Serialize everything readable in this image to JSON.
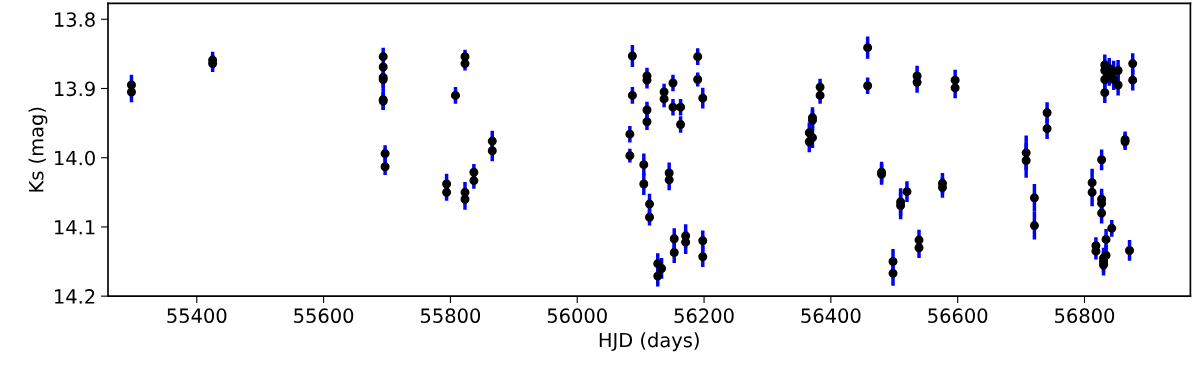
{
  "chart_data": {
    "type": "scatter",
    "xlabel": "HJD (days)",
    "ylabel": "Ks (mag)",
    "xlim": [
      55260,
      56967
    ],
    "xticks": [
      55400,
      55600,
      55800,
      56000,
      56200,
      56400,
      56600,
      56800
    ],
    "ylim": [
      14.2,
      13.777
    ],
    "yticks": [
      13.8,
      13.9,
      {
        "value": 14.0,
        "label": "14.0"
      },
      14.1,
      14.2
    ],
    "marker": "circle",
    "grid": false,
    "series": [
      {
        "color": "#0000ff",
        "colors": [
          "#000000",
          "#000000",
          "#000000",
          "#000000",
          "#000000",
          "#000000",
          "#000000",
          "#000000",
          "#000000",
          "#000000",
          "#000000",
          "#000000",
          "#000000",
          "#000000",
          "#000000",
          "#000000",
          "#000000",
          "#000000",
          "#000000",
          "#000000",
          "#000000",
          "#000000",
          "#000000",
          "#000000",
          "#000000",
          "#000000",
          "#000000",
          "#000000",
          "#000000",
          "#000000",
          "#000000",
          "#000000",
          "#000000",
          "#000000",
          "#000000",
          "#000000",
          "#000000",
          "#000000",
          "#000000",
          "#000000",
          "#000000",
          "#000000",
          "#000000",
          "#000000",
          "#000000",
          "#000000",
          "#000000",
          "#000000",
          "#000000",
          "#000000",
          "#000000",
          "#000000",
          "#000000",
          "#000000",
          "#000000",
          "#000000",
          "#000000",
          "#000000",
          "#000000",
          "#000000",
          "#000000",
          "#000000",
          "#000000",
          "#000000",
          "#000000",
          "#000000",
          "#000000",
          "#000000",
          "#000000",
          "#000000",
          "#000000",
          "#000000",
          "#000000",
          "#000000",
          "#000000",
          "#000000",
          "#000000",
          "#000000",
          "#000000",
          "#000000",
          "#000000",
          "#000000",
          "#000000",
          "#000000",
          "#000000",
          "#000000",
          "#000000",
          "#000000",
          "#000000",
          "#000000",
          "#000000",
          "#000000",
          "#000000",
          "#000000",
          "#000000",
          "#000000",
          "#000000",
          "#000000",
          "#000000",
          "#000000",
          "#000000",
          "#000000",
          "#000000",
          "#000000",
          "#000000",
          "#000000",
          "#000000",
          "#000000",
          "#000000",
          "#000000",
          "#000000",
          "#000000",
          "#000000",
          "#000000"
        ],
        "x": [
          55297,
          55297,
          55425,
          55425,
          55694,
          55694,
          55694,
          55694,
          55694,
          55694,
          55697,
          55697,
          55794,
          55794,
          55808,
          55823,
          55823,
          55823,
          55823,
          55837,
          55837,
          55866,
          55866,
          56083,
          56083,
          56087,
          56087,
          56105,
          56105,
          56110,
          56110,
          56110,
          56110,
          56114,
          56114,
          56127,
          56127,
          56133,
          56137,
          56137,
          56145,
          56145,
          56151,
          56151,
          56153,
          56153,
          56163,
          56163,
          56171,
          56171,
          56190,
          56190,
          56198,
          56198,
          56198,
          56366,
          56366,
          56371,
          56371,
          56371,
          56383,
          56383,
          56458,
          56458,
          56480,
          56480,
          56498,
          56498,
          56510,
          56510,
          56520,
          56536,
          56536,
          56539,
          56539,
          56576,
          56576,
          56596,
          56596,
          56708,
          56708,
          56721,
          56721,
          56741,
          56741,
          56812,
          56812,
          56818,
          56818,
          56827,
          56827,
          56827,
          56827,
          56830,
          56830,
          56830,
          56832,
          56832,
          56832,
          56832,
          56834,
          56834,
          56839,
          56839,
          56843,
          56846,
          56846,
          56853,
          56853,
          56864,
          56864,
          56871,
          56876,
          56876
        ],
        "values": [
          13.895,
          13.905,
          13.859,
          13.864,
          13.854,
          13.869,
          13.884,
          13.887,
          13.916,
          13.918,
          13.994,
          14.013,
          14.038,
          14.05,
          13.91,
          13.854,
          13.864,
          14.05,
          14.06,
          14.021,
          14.033,
          13.976,
          13.99,
          13.966,
          13.997,
          13.853,
          13.91,
          14.01,
          14.038,
          13.882,
          13.888,
          13.931,
          13.948,
          14.067,
          14.086,
          14.153,
          14.171,
          14.16,
          13.905,
          13.915,
          14.022,
          14.032,
          13.892,
          13.927,
          14.117,
          14.137,
          13.927,
          13.952,
          14.113,
          14.122,
          13.854,
          13.887,
          13.914,
          14.12,
          14.143,
          13.964,
          13.977,
          13.942,
          13.946,
          13.971,
          13.898,
          13.91,
          13.841,
          13.896,
          14.021,
          14.024,
          14.15,
          14.167,
          14.064,
          14.069,
          14.049,
          13.882,
          13.891,
          14.119,
          14.13,
          14.037,
          14.043,
          13.888,
          13.899,
          13.993,
          14.004,
          14.058,
          14.098,
          13.935,
          13.958,
          14.036,
          14.05,
          14.127,
          14.135,
          14.003,
          14.06,
          14.066,
          14.08,
          14.145,
          14.15,
          14.155,
          13.866,
          13.874,
          13.887,
          13.906,
          14.118,
          14.141,
          13.871,
          13.881,
          14.102,
          13.875,
          13.887,
          13.874,
          13.895,
          13.974,
          13.977,
          14.134,
          13.864,
          13.888
        ],
        "errors": [
          0.015,
          0.015,
          0.012,
          0.012,
          0.013,
          null,
          0.015,
          0.015,
          0.015,
          0.013,
          0.012,
          0.012,
          0.015,
          0.012,
          0.012,
          0.01,
          0.01,
          0.015,
          0.015,
          0.012,
          0.012,
          0.015,
          0.015,
          0.012,
          0.01,
          0.016,
          0.012,
          0.016,
          0.016,
          0.012,
          0.012,
          0.012,
          0.012,
          0.015,
          0.012,
          0.015,
          0.015,
          0.015,
          0.012,
          0.012,
          0.015,
          0.015,
          0.012,
          0.012,
          0.015,
          0.015,
          0.012,
          0.012,
          0.017,
          0.017,
          0.012,
          0.01,
          0.015,
          0.015,
          0.015,
          0.015,
          0.015,
          0.015,
          0.015,
          0.015,
          0.012,
          0.012,
          0.016,
          0.012,
          0.015,
          0.015,
          0.018,
          0.018,
          0.02,
          0.02,
          0.015,
          0.015,
          0.015,
          0.015,
          0.015,
          0.015,
          0.015,
          0.015,
          0.015,
          0.025,
          0.025,
          0.02,
          0.02,
          0.015,
          0.015,
          0.02,
          0.02,
          0.012,
          0.012,
          0.015,
          0.015,
          0.015,
          0.015,
          0.015,
          0.015,
          0.015,
          0.015,
          0.015,
          0.015,
          0.015,
          0.015,
          0.015,
          0.015,
          0.015,
          0.012,
          0.015,
          0.015,
          0.015,
          0.015,
          0.012,
          0.012,
          0.015,
          0.015,
          0.015
        ]
      }
    ]
  }
}
